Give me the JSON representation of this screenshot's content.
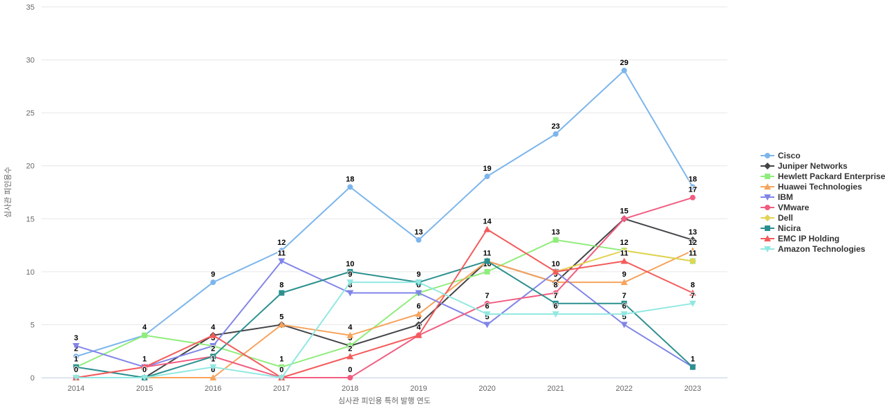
{
  "chart_data": {
    "type": "line",
    "categories": [
      "2014",
      "2015",
      "2016",
      "2017",
      "2018",
      "2019",
      "2020",
      "2021",
      "2022",
      "2023"
    ],
    "xlabel": "심사관 피인용 특허 발행 연도",
    "ylabel": "심사관 피인용수",
    "ylim": [
      0,
      35
    ],
    "yticks": [
      0,
      5,
      10,
      15,
      20,
      25,
      30,
      35
    ],
    "grid": true,
    "legend_position": "right",
    "data_labels": true,
    "series": [
      {
        "name": "Cisco",
        "color": "#7cb5ec",
        "marker": "circle",
        "values": [
          2,
          4,
          9,
          12,
          18,
          13,
          19,
          23,
          29,
          18
        ]
      },
      {
        "name": "Juniper Networks",
        "color": "#434348",
        "marker": "diamond",
        "values": [
          null,
          0,
          4,
          5,
          3,
          5,
          11,
          9,
          15,
          13
        ]
      },
      {
        "name": "Hewlett Packard Enterprise ...",
        "color": "#90ed7d",
        "marker": "square",
        "values": [
          1,
          4,
          3,
          1,
          3,
          8,
          10,
          13,
          12,
          11
        ]
      },
      {
        "name": "Huawei Technologies",
        "color": "#f7a35c",
        "marker": "triangle",
        "values": [
          null,
          0,
          0,
          5,
          4,
          6,
          11,
          9,
          9,
          12
        ]
      },
      {
        "name": "IBM",
        "color": "#8085e9",
        "marker": "triangle-down",
        "values": [
          3,
          1,
          3,
          11,
          8,
          8,
          5,
          10,
          5,
          1
        ]
      },
      {
        "name": "VMware",
        "color": "#f15c80",
        "marker": "circle",
        "values": [
          0,
          1,
          2,
          0,
          0,
          4,
          7,
          8,
          15,
          17
        ]
      },
      {
        "name": "Dell",
        "color": "#e4d354",
        "marker": "diamond",
        "values": [
          null,
          null,
          null,
          null,
          null,
          null,
          null,
          10,
          12,
          11
        ]
      },
      {
        "name": "Nicira",
        "color": "#2b908f",
        "marker": "square",
        "values": [
          1,
          0,
          2,
          8,
          10,
          9,
          11,
          7,
          7,
          1
        ]
      },
      {
        "name": "EMC IP Holding",
        "color": "#f45b5b",
        "marker": "triangle",
        "values": [
          0,
          1,
          4,
          0,
          2,
          4,
          14,
          10,
          11,
          8
        ]
      },
      {
        "name": "Amazon Technologies",
        "color": "#91e8e1",
        "marker": "triangle-down",
        "values": [
          0,
          0,
          1,
          0,
          9,
          9,
          6,
          6,
          6,
          7
        ]
      }
    ],
    "colors": {
      "grid": "#e6e6e6",
      "axis_line": "#ccd6eb",
      "tick_text": "#666666",
      "legend_text": "#333333",
      "data_label": "#000000",
      "background": "#ffffff"
    }
  }
}
